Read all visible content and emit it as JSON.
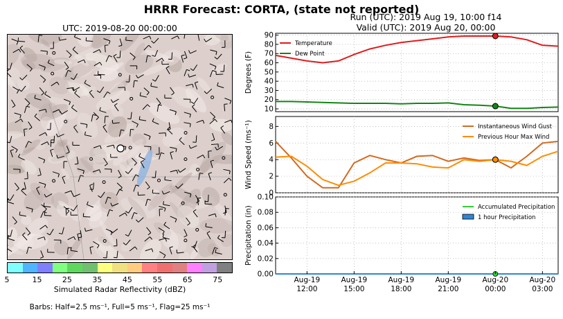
{
  "header": {
    "title": "HRRR Forecast: CORTA, (state not reported)",
    "run": "Run (UTC): 2019 Aug 19, 10:00 f14",
    "valid": "Valid (UTC): 2019 Aug 20, 00:00"
  },
  "map": {
    "title": "UTC: 2019-08-20 00:00:00",
    "colorbar_label": "Simulated Radar Reflectivity (dBZ)",
    "colorbar_ticks": [
      "5",
      "15",
      "25",
      "35",
      "45",
      "55",
      "65",
      "75"
    ],
    "colorbar_colors": [
      "#80ffff",
      "#50b4ff",
      "#8080ff",
      "#80ff80",
      "#5ed95e",
      "#70c070",
      "#ffff80",
      "#f0e080",
      "#ffcc80",
      "#ff8080",
      "#f07070",
      "#e08080",
      "#ff80ff",
      "#c0a0e0",
      "#808080"
    ],
    "barbs_note": "Barbs: Half=2.5 ms⁻¹, Full=5 ms⁻¹, Flag=25 ms⁻¹"
  },
  "chart_data": [
    {
      "type": "line",
      "ylabel": "Degrees (F)",
      "ylim": [
        7,
        92
      ],
      "yticks": [
        10,
        20,
        30,
        40,
        50,
        60,
        70,
        80,
        90
      ],
      "legend": "top-left",
      "grid": true,
      "x": [
        "Aug-19 10:00",
        "Aug-19 11:00",
        "Aug-19 12:00",
        "Aug-19 13:00",
        "Aug-19 14:00",
        "Aug-19 15:00",
        "Aug-19 16:00",
        "Aug-19 17:00",
        "Aug-19 18:00",
        "Aug-19 19:00",
        "Aug-19 20:00",
        "Aug-19 21:00",
        "Aug-19 22:00",
        "Aug-19 23:00",
        "Aug-20 00:00",
        "Aug-20 01:00",
        "Aug-20 02:00",
        "Aug-20 03:00",
        "Aug-20 04:00"
      ],
      "series": [
        {
          "name": "Temperature",
          "color": "#e31a1c",
          "values": [
            68,
            65,
            62,
            60,
            62,
            69,
            75,
            79,
            82,
            84,
            86,
            88,
            89,
            89,
            89,
            88,
            85,
            79,
            78
          ]
        },
        {
          "name": "Dew Point",
          "color": "#138513",
          "values": [
            18,
            18,
            17.5,
            17,
            16.5,
            16,
            16,
            16,
            15.5,
            16,
            16,
            16.5,
            14.5,
            14,
            13,
            10.5,
            10.5,
            11.5,
            12
          ]
        }
      ],
      "highlight_x": "Aug-20 00:00"
    },
    {
      "type": "line",
      "ylabel": "Wind Speed (ms⁻¹)",
      "ylim": [
        0,
        9.2
      ],
      "yticks": [
        0,
        2,
        4,
        6,
        8
      ],
      "legend": "top-right",
      "grid": true,
      "series": [
        {
          "name": "Instantaneous Wind Gust",
          "color": "#d2691e",
          "values": [
            6.2,
            4.2,
            2,
            0.6,
            0.6,
            3.6,
            4.5,
            4,
            3.6,
            4.4,
            4.5,
            3.8,
            4.2,
            3.9,
            4,
            3,
            4.4,
            6,
            6.2
          ]
        },
        {
          "name": "Previous Hour Max Wind",
          "color": "#ff8c00",
          "values": [
            4.3,
            4.4,
            3.2,
            1.6,
            0.9,
            1.4,
            2.4,
            3.6,
            3.6,
            3.5,
            3.1,
            3,
            4,
            3.8,
            4,
            3.8,
            3.3,
            4.4,
            5
          ]
        }
      ],
      "highlight_x": "Aug-20 00:00"
    },
    {
      "type": "line",
      "ylabel": "Precipitation (in)",
      "ylim": [
        0,
        0.1
      ],
      "yticks": [
        "0.00",
        "0.02",
        "0.04",
        "0.06",
        "0.08",
        "0.10"
      ],
      "legend": "top-right",
      "grid": true,
      "series": [
        {
          "name": "Accumulated Precipitation",
          "color": "#33cc33",
          "values": [
            0,
            0,
            0,
            0,
            0,
            0,
            0,
            0,
            0,
            0,
            0,
            0,
            0,
            0,
            0,
            0,
            0,
            0,
            0
          ]
        },
        {
          "name": "1 hour Precipitation",
          "color": "#2f86d6",
          "values": [
            0,
            0,
            0,
            0,
            0,
            0,
            0,
            0,
            0,
            0,
            0,
            0,
            0,
            0,
            0,
            0,
            0,
            0,
            0
          ]
        }
      ],
      "highlight_x": "Aug-20 00:00"
    }
  ],
  "xaxis": {
    "ticks": [
      {
        "line1": "Aug-19",
        "line2": "12:00",
        "hour": 2
      },
      {
        "line1": "Aug-19",
        "line2": "15:00",
        "hour": 5
      },
      {
        "line1": "Aug-19",
        "line2": "18:00",
        "hour": 8
      },
      {
        "line1": "Aug-19",
        "line2": "21:00",
        "hour": 11
      },
      {
        "line1": "Aug-20",
        "line2": "00:00",
        "hour": 14
      },
      {
        "line1": "Aug-20",
        "line2": "03:00",
        "hour": 17
      }
    ]
  }
}
